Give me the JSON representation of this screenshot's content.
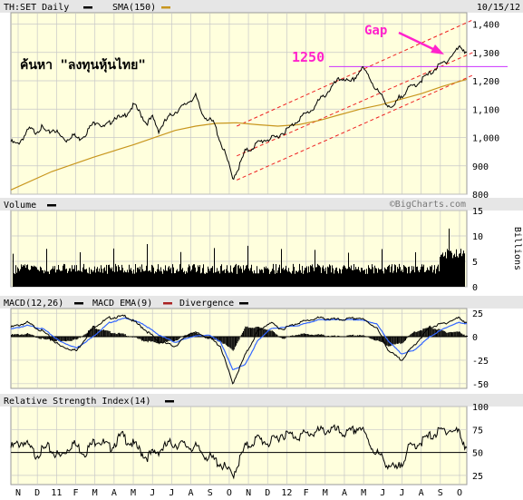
{
  "chart_data": [
    {
      "type": "line",
      "header": {
        "symbol": "TH:SET Daily",
        "sma_label": "SMA(150)",
        "date": "10/15/12"
      },
      "overlay_text": "ค้นหา \"ลงทุนหุ้นไทย\"",
      "annotations": {
        "level_label": "1250",
        "level_value": 1250,
        "gap_label": "Gap"
      },
      "y_ticks": [
        800,
        900,
        1000,
        1100,
        1200,
        1300,
        1400
      ],
      "y_tick_labels": [
        "800",
        "900",
        "1,000",
        "1,100",
        "1,200",
        "1,300",
        "1,400"
      ],
      "ylim": [
        800,
        1440
      ],
      "price_points": [
        [
          0,
          985
        ],
        [
          3,
          975
        ],
        [
          6,
          1000
        ],
        [
          9,
          1030
        ],
        [
          12,
          1020
        ],
        [
          15,
          1035
        ],
        [
          18,
          1015
        ],
        [
          21,
          1030
        ],
        [
          24,
          1005
        ],
        [
          27,
          990
        ],
        [
          30,
          1010
        ],
        [
          33,
          995
        ],
        [
          36,
          1010
        ],
        [
          39,
          1040
        ],
        [
          42,
          1060
        ],
        [
          45,
          1035
        ],
        [
          48,
          1050
        ],
        [
          51,
          1075
        ],
        [
          54,
          1065
        ],
        [
          57,
          1090
        ],
        [
          60,
          1115
        ],
        [
          63,
          1085
        ],
        [
          66,
          1050
        ],
        [
          69,
          1070
        ],
        [
          72,
          1025
        ],
        [
          75,
          1055
        ],
        [
          78,
          1080
        ],
        [
          81,
          1095
        ],
        [
          84,
          1110
        ],
        [
          87,
          1130
        ],
        [
          90,
          1145
        ],
        [
          93,
          1085
        ],
        [
          96,
          1065
        ],
        [
          99,
          1050
        ],
        [
          102,
          985
        ],
        [
          105,
          930
        ],
        [
          108,
          855
        ],
        [
          111,
          895
        ],
        [
          114,
          950
        ],
        [
          117,
          960
        ],
        [
          120,
          980
        ],
        [
          123,
          990
        ],
        [
          126,
          995
        ],
        [
          129,
          1000
        ],
        [
          132,
          1015
        ],
        [
          135,
          1030
        ],
        [
          138,
          1050
        ],
        [
          141,
          1070
        ],
        [
          144,
          1085
        ],
        [
          147,
          1100
        ],
        [
          150,
          1130
        ],
        [
          153,
          1150
        ],
        [
          156,
          1175
        ],
        [
          159,
          1200
        ],
        [
          162,
          1210
        ],
        [
          165,
          1190
        ],
        [
          168,
          1215
        ],
        [
          171,
          1245
        ],
        [
          174,
          1220
        ],
        [
          177,
          1180
        ],
        [
          180,
          1150
        ],
        [
          183,
          1120
        ],
        [
          186,
          1100
        ],
        [
          189,
          1140
        ],
        [
          192,
          1160
        ],
        [
          195,
          1180
        ],
        [
          198,
          1190
        ],
        [
          201,
          1210
        ],
        [
          204,
          1225
        ],
        [
          207,
          1245
        ],
        [
          210,
          1260
        ],
        [
          213,
          1275
        ],
        [
          216,
          1300
        ],
        [
          219,
          1320
        ],
        [
          222,
          1300
        ]
      ],
      "sma_points": [
        [
          0,
          815
        ],
        [
          20,
          880
        ],
        [
          40,
          930
        ],
        [
          60,
          975
        ],
        [
          80,
          1025
        ],
        [
          90,
          1040
        ],
        [
          100,
          1050
        ],
        [
          110,
          1052
        ],
        [
          120,
          1045
        ],
        [
          130,
          1040
        ],
        [
          140,
          1045
        ],
        [
          150,
          1060
        ],
        [
          160,
          1080
        ],
        [
          170,
          1100
        ],
        [
          180,
          1115
        ],
        [
          190,
          1135
        ],
        [
          200,
          1155
        ],
        [
          210,
          1180
        ],
        [
          222,
          1205
        ]
      ],
      "trendlines": [
        {
          "from": [
            110,
            850
          ],
          "to": [
            225,
            1220
          ]
        },
        {
          "from": [
            110,
            935
          ],
          "to": [
            225,
            1300
          ]
        },
        {
          "from": [
            110,
            1040
          ],
          "to": [
            225,
            1415
          ]
        }
      ],
      "x_range": [
        0,
        222
      ]
    },
    {
      "type": "bar",
      "title": "Volume",
      "y_ticks": [
        0,
        5,
        10,
        15
      ],
      "y_label": "Billions",
      "ylim": [
        0,
        15
      ],
      "watermark": "©BigCharts.com"
    },
    {
      "type": "line",
      "legend": [
        "MACD(12,26)",
        "MACD EMA(9)",
        "Divergence"
      ],
      "y_ticks": [
        25,
        0,
        -25,
        -50
      ],
      "ylim": [
        -55,
        30
      ],
      "macd_points": [
        [
          0,
          10
        ],
        [
          8,
          15
        ],
        [
          16,
          5
        ],
        [
          24,
          -10
        ],
        [
          32,
          -15
        ],
        [
          40,
          10
        ],
        [
          48,
          20
        ],
        [
          56,
          22
        ],
        [
          64,
          10
        ],
        [
          72,
          -5
        ],
        [
          80,
          -10
        ],
        [
          88,
          5
        ],
        [
          96,
          0
        ],
        [
          102,
          -10
        ],
        [
          108,
          -50
        ],
        [
          114,
          -20
        ],
        [
          120,
          5
        ],
        [
          126,
          15
        ],
        [
          132,
          8
        ],
        [
          140,
          15
        ],
        [
          150,
          20
        ],
        [
          160,
          18
        ],
        [
          170,
          20
        ],
        [
          178,
          10
        ],
        [
          184,
          -15
        ],
        [
          190,
          -25
        ],
        [
          196,
          -10
        ],
        [
          204,
          10
        ],
        [
          212,
          15
        ],
        [
          218,
          20
        ],
        [
          222,
          15
        ]
      ],
      "ema_points": [
        [
          0,
          8
        ],
        [
          8,
          12
        ],
        [
          16,
          8
        ],
        [
          24,
          -5
        ],
        [
          32,
          -12
        ],
        [
          40,
          0
        ],
        [
          48,
          15
        ],
        [
          56,
          20
        ],
        [
          64,
          14
        ],
        [
          72,
          2
        ],
        [
          80,
          -6
        ],
        [
          88,
          0
        ],
        [
          96,
          2
        ],
        [
          102,
          -5
        ],
        [
          108,
          -35
        ],
        [
          114,
          -30
        ],
        [
          120,
          -5
        ],
        [
          126,
          8
        ],
        [
          132,
          10
        ],
        [
          140,
          12
        ],
        [
          150,
          18
        ],
        [
          160,
          18
        ],
        [
          170,
          18
        ],
        [
          178,
          14
        ],
        [
          184,
          -5
        ],
        [
          190,
          -18
        ],
        [
          196,
          -15
        ],
        [
          204,
          0
        ],
        [
          212,
          10
        ],
        [
          218,
          15
        ],
        [
          222,
          14
        ]
      ],
      "colors": {
        "macd": "#000000",
        "ema": "#3366ff",
        "divergence": "#aa2222"
      }
    },
    {
      "type": "line",
      "title": "Relative Strength Index(14)",
      "y_ticks": [
        100,
        75,
        50,
        25
      ],
      "ylim": [
        15,
        100
      ],
      "reference_line": 50,
      "rsi_points": [
        [
          0,
          55
        ],
        [
          6,
          62
        ],
        [
          12,
          48
        ],
        [
          18,
          55
        ],
        [
          24,
          45
        ],
        [
          30,
          60
        ],
        [
          36,
          50
        ],
        [
          42,
          65
        ],
        [
          48,
          55
        ],
        [
          54,
          68
        ],
        [
          60,
          58
        ],
        [
          66,
          45
        ],
        [
          72,
          52
        ],
        [
          78,
          60
        ],
        [
          84,
          58
        ],
        [
          90,
          55
        ],
        [
          96,
          45
        ],
        [
          102,
          38
        ],
        [
          108,
          25
        ],
        [
          114,
          55
        ],
        [
          120,
          65
        ],
        [
          126,
          60
        ],
        [
          132,
          70
        ],
        [
          140,
          68
        ],
        [
          148,
          72
        ],
        [
          156,
          75
        ],
        [
          164,
          70
        ],
        [
          170,
          78
        ],
        [
          176,
          55
        ],
        [
          182,
          40
        ],
        [
          188,
          30
        ],
        [
          194,
          55
        ],
        [
          200,
          62
        ],
        [
          206,
          70
        ],
        [
          212,
          75
        ],
        [
          218,
          72
        ],
        [
          222,
          55
        ]
      ]
    }
  ],
  "x_axis_labels": [
    "N",
    "D",
    "11",
    "F",
    "M",
    "A",
    "M",
    "J",
    "J",
    "A",
    "S",
    "O",
    "N",
    "D",
    "12",
    "F",
    "M",
    "A",
    "M",
    "J",
    "J",
    "A",
    "S",
    "O"
  ],
  "colors": {
    "panel_bg": "#ffffdd",
    "header_bg": "#e6e6e6",
    "grid": "#c8c8c8",
    "price": "#000000",
    "sma": "#c8961e",
    "trend": "#ee2222",
    "level_line": "#cc33ff",
    "annot": "#ff22cc",
    "watermark": "#777777"
  }
}
